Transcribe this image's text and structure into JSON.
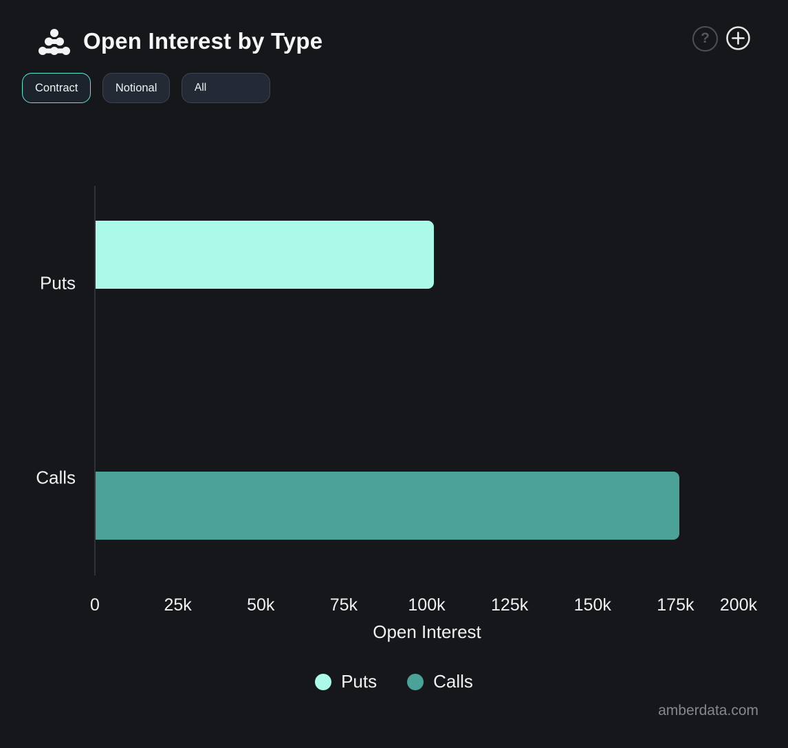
{
  "header": {
    "title": "Open Interest by Type",
    "icons": {
      "help": "?",
      "add": "+"
    }
  },
  "controls": {
    "unit_toggle": [
      {
        "label": "Contract",
        "selected": true
      },
      {
        "label": "Notional",
        "selected": false
      }
    ],
    "filter": {
      "value": "All"
    }
  },
  "chart_data": {
    "type": "bar",
    "orientation": "horizontal",
    "categories": [
      "Puts",
      "Calls"
    ],
    "series": [
      {
        "name": "Puts",
        "color": "#abf9e8",
        "values": [
          102000,
          0
        ]
      },
      {
        "name": "Calls",
        "color": "#4aa298",
        "values": [
          0,
          176000
        ]
      }
    ],
    "xlabel": "Open Interest",
    "ylabel": "",
    "xlim": [
      0,
      200000
    ],
    "xticks": {
      "values": [
        0,
        25000,
        50000,
        75000,
        100000,
        125000,
        150000,
        175000,
        200000
      ],
      "labels": [
        "0",
        "25k",
        "50k",
        "75k",
        "100k",
        "125k",
        "150k",
        "175k",
        "200k"
      ]
    },
    "legend": {
      "position": "bottom"
    },
    "grid": false
  },
  "footer": {
    "watermark": "amberdata.com"
  },
  "theme": {
    "background": "#16171b",
    "accent": "#5ce9d1",
    "axis_color": "#2e333a",
    "text_color": "#eef1f2",
    "bar_puts": "#abf9e8",
    "bar_calls": "#4aa298"
  }
}
